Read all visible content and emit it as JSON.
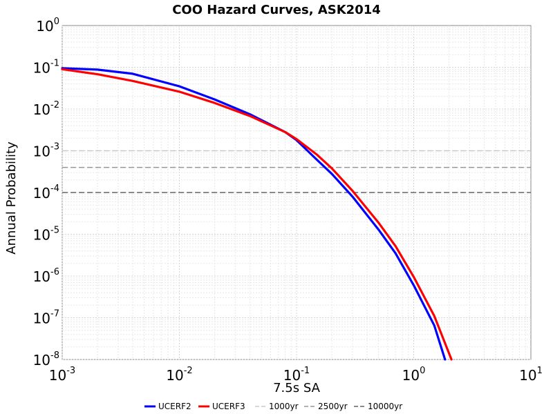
{
  "chart_data": {
    "type": "line",
    "title": "COO Hazard Curves, ASK2014",
    "xlabel": "7.5s SA",
    "ylabel": "Annual Probability",
    "xscale": "log",
    "yscale": "log",
    "xlim": [
      0.001,
      10
    ],
    "ylim": [
      1e-08,
      1
    ],
    "grid": true,
    "legend_placement": "bottom",
    "x_ticks": [
      {
        "base": "10",
        "exp": "-3"
      },
      {
        "base": "10",
        "exp": "-2"
      },
      {
        "base": "10",
        "exp": "-1"
      },
      {
        "base": "10",
        "exp": "0"
      },
      {
        "base": "10",
        "exp": "1"
      }
    ],
    "y_ticks": [
      {
        "base": "10",
        "exp": "0"
      },
      {
        "base": "10",
        "exp": "-1"
      },
      {
        "base": "10",
        "exp": "-2"
      },
      {
        "base": "10",
        "exp": "-3"
      },
      {
        "base": "10",
        "exp": "-4"
      },
      {
        "base": "10",
        "exp": "-5"
      },
      {
        "base": "10",
        "exp": "-6"
      },
      {
        "base": "10",
        "exp": "-7"
      },
      {
        "base": "10",
        "exp": "-8"
      }
    ],
    "series": [
      {
        "name": "UCERF2",
        "color": "#0000ff",
        "points": [
          [
            0.001,
            0.095
          ],
          [
            0.002,
            0.088
          ],
          [
            0.004,
            0.07
          ],
          [
            0.01,
            0.035
          ],
          [
            0.02,
            0.017
          ],
          [
            0.04,
            0.0075
          ],
          [
            0.08,
            0.0028
          ],
          [
            0.1,
            0.0018
          ],
          [
            0.15,
            0.0006
          ],
          [
            0.2,
            0.00028
          ],
          [
            0.3,
            8e-05
          ],
          [
            0.5,
            1.3e-05
          ],
          [
            0.7,
            3.5e-06
          ],
          [
            1.0,
            6e-07
          ],
          [
            1.5,
            6.5e-08
          ],
          [
            1.85,
            1e-08
          ]
        ]
      },
      {
        "name": "UCERF3",
        "color": "#ff0000",
        "points": [
          [
            0.001,
            0.09
          ],
          [
            0.002,
            0.068
          ],
          [
            0.004,
            0.047
          ],
          [
            0.01,
            0.026
          ],
          [
            0.02,
            0.014
          ],
          [
            0.04,
            0.0068
          ],
          [
            0.08,
            0.0028
          ],
          [
            0.1,
            0.0019
          ],
          [
            0.15,
            0.0008
          ],
          [
            0.2,
            0.00038
          ],
          [
            0.3,
            0.00011
          ],
          [
            0.5,
            1.9e-05
          ],
          [
            0.7,
            5.2e-06
          ],
          [
            1.0,
            9.5e-07
          ],
          [
            1.5,
            1.1e-07
          ],
          [
            2.1,
            1e-08
          ]
        ]
      },
      {
        "name": "1000yr",
        "color": "#c8c8c8",
        "dashed": true,
        "y": 0.001
      },
      {
        "name": "2500yr",
        "color": "#969696",
        "dashed": true,
        "y": 0.0004
      },
      {
        "name": "10000yr",
        "color": "#646464",
        "dashed": true,
        "y": 0.0001
      }
    ]
  }
}
